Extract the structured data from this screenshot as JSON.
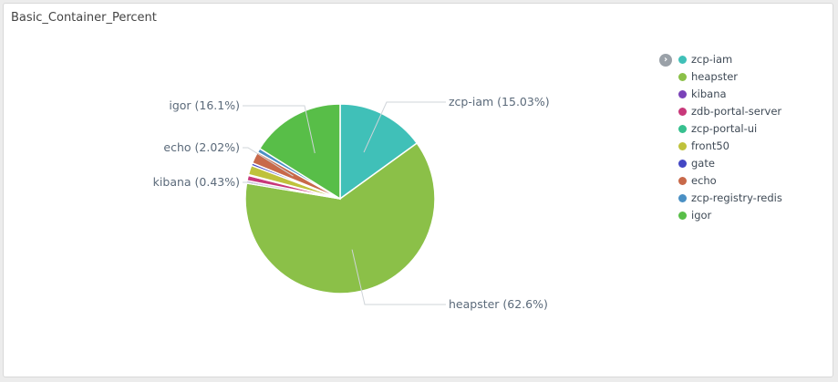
{
  "panel": {
    "title": "Basic_Container_Percent",
    "legend_toggle_icon": "chevron-right-icon"
  },
  "chart_data": {
    "type": "pie",
    "slices": [
      {
        "name": "zcp-iam",
        "value": 15.03,
        "color": "#40c0b8",
        "label": "zcp-iam (15.03%)"
      },
      {
        "name": "heapster",
        "value": 62.6,
        "color": "#8bc048",
        "label": "heapster (62.6%)"
      },
      {
        "name": "kibana",
        "value": 0.43,
        "color": "#7a42b8",
        "label": "kibana (0.43%)"
      },
      {
        "name": "zdb-portal-server",
        "value": 0.9,
        "color": "#c8387a",
        "label": ""
      },
      {
        "name": "zcp-portal-ui",
        "value": 0.15,
        "color": "#37c08f",
        "label": ""
      },
      {
        "name": "front50",
        "value": 1.6,
        "color": "#bfc23c",
        "label": ""
      },
      {
        "name": "gate",
        "value": 0.45,
        "color": "#4347c4",
        "label": ""
      },
      {
        "name": "echo",
        "value": 2.02,
        "color": "#c8694a",
        "label": "echo (2.02%)"
      },
      {
        "name": "zcp-registry-redis",
        "value": 0.72,
        "color": "#4a90c4",
        "label": ""
      },
      {
        "name": "igor",
        "value": 16.1,
        "color": "#58be48",
        "label": "igor (16.1%)"
      }
    ],
    "legend": [
      "zcp-iam",
      "heapster",
      "kibana",
      "zdb-portal-server",
      "zcp-portal-ui",
      "front50",
      "gate",
      "echo",
      "zcp-registry-redis",
      "igor"
    ],
    "legend_position": "right"
  }
}
